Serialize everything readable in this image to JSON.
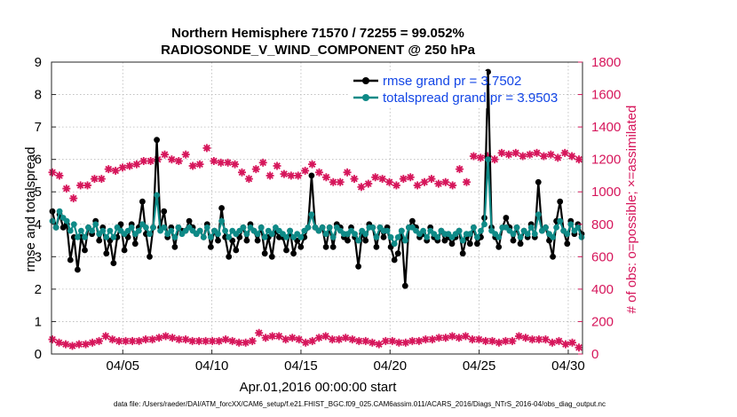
{
  "chart_data": {
    "type": "line",
    "title": "Northern Hemisphere 71570 / 72255 = 99.052%",
    "subtitle": "RADIOSONDE_V_WIND_COMPONENT @ 250 hPa",
    "xlabel": "Apr.01,2016 00:00:00 start",
    "ylabel": "rmse and totalspread",
    "ylabel_right": "# of obs: o=possible; ×=assimilated",
    "footer": "data file: /Users/raeder/DAI/ATM_forcXX/CAM6_setup/f.e21.FHIST_BGC.f09_025.CAM6assim.011/ACARS_2016/Diags_NTrS_2016-04/obs_diag_output.nc",
    "x_ticks": [
      "04/05",
      "04/10",
      "04/15",
      "04/20",
      "04/25",
      "04/30"
    ],
    "x_tick_days": [
      4,
      9,
      14,
      19,
      24,
      29
    ],
    "xlim_days": [
      0,
      29.8
    ],
    "ylim": [
      0,
      9
    ],
    "y_ticks": [
      "0",
      "1",
      "2",
      "3",
      "4",
      "5",
      "6",
      "7",
      "8",
      "9"
    ],
    "ylim_right": [
      0,
      1800
    ],
    "y_ticks_right": [
      "0",
      "200",
      "400",
      "600",
      "800",
      "1000",
      "1200",
      "1400",
      "1600",
      "1800"
    ],
    "grid": true,
    "legend_position": "top-right",
    "colors": {
      "rmse": "#000000",
      "spread": "#0e8a87",
      "obs": "#d6165b",
      "legend_text": "#1346e6"
    },
    "series": [
      {
        "name": "rmse grand pr = 3.7502",
        "axis": "left",
        "values": [
          4.4,
          3.9,
          4.3,
          3.9,
          4.0,
          2.9,
          3.6,
          2.6,
          3.6,
          3.2,
          3.9,
          3.7,
          4.1,
          3.5,
          3.9,
          3.1,
          3.5,
          2.8,
          3.6,
          4.0,
          3.2,
          3.6,
          4.0,
          3.4,
          3.9,
          4.7,
          3.7,
          3.0,
          3.9,
          6.6,
          3.9,
          4.4,
          3.6,
          3.9,
          3.3,
          3.9,
          3.8,
          3.8,
          4.1,
          3.9,
          3.7,
          3.8,
          3.6,
          4.0,
          3.3,
          3.8,
          3.5,
          4.5,
          3.6,
          3.0,
          3.5,
          3.2,
          3.6,
          3.9,
          3.5,
          4.0,
          3.8,
          3.5,
          3.9,
          3.1,
          3.6,
          3.0,
          3.8,
          3.6,
          3.6,
          3.2,
          3.8,
          3.1,
          3.5,
          3.3,
          3.6,
          3.9,
          5.5,
          3.9,
          3.8,
          3.9,
          3.3,
          3.9,
          3.3,
          4.0,
          3.9,
          3.6,
          3.5,
          3.9,
          3.6,
          2.7,
          3.7,
          3.5,
          4.0,
          3.9,
          3.3,
          3.9,
          3.6,
          3.9,
          3.3,
          2.9,
          3.1,
          3.8,
          2.1,
          3.9,
          4.1,
          3.9,
          3.6,
          3.7,
          3.5,
          3.9,
          3.6,
          3.5,
          3.8,
          3.5,
          3.6,
          3.4,
          3.6,
          3.8,
          3.1,
          3.6,
          3.4,
          3.9,
          3.4,
          3.6,
          4.2,
          8.7,
          3.9,
          3.6,
          3.3,
          3.9,
          4.2,
          3.9,
          3.5,
          3.9,
          3.4,
          3.8,
          3.6,
          4.0,
          3.6,
          5.3,
          3.8,
          3.9,
          3.5,
          3.0,
          4.1,
          4.7,
          3.8,
          3.4,
          4.1,
          3.7,
          4.0,
          3.7
        ]
      },
      {
        "name": "totalspread grand pr = 3.9503",
        "axis": "left",
        "values": [
          4.1,
          3.9,
          4.4,
          4.2,
          4.1,
          3.8,
          4.0,
          3.6,
          3.8,
          3.6,
          3.9,
          3.8,
          4.0,
          3.7,
          3.8,
          3.6,
          3.8,
          3.6,
          3.9,
          3.8,
          3.7,
          3.8,
          3.9,
          3.7,
          3.8,
          4.0,
          3.9,
          3.7,
          3.9,
          4.9,
          3.8,
          3.9,
          3.7,
          3.8,
          3.6,
          3.9,
          3.7,
          3.8,
          3.9,
          3.8,
          3.7,
          3.8,
          3.6,
          3.9,
          3.6,
          3.8,
          3.7,
          4.1,
          3.8,
          3.6,
          3.8,
          3.7,
          3.8,
          3.9,
          3.7,
          3.9,
          3.8,
          3.7,
          3.9,
          3.6,
          3.8,
          3.7,
          3.9,
          3.8,
          3.7,
          3.6,
          3.8,
          3.6,
          3.7,
          3.6,
          3.8,
          3.9,
          4.3,
          3.9,
          3.8,
          3.9,
          3.7,
          3.9,
          3.6,
          3.9,
          3.8,
          3.7,
          3.7,
          3.8,
          3.7,
          3.5,
          3.8,
          3.7,
          3.9,
          3.9,
          3.6,
          3.9,
          3.8,
          3.8,
          3.6,
          3.4,
          3.6,
          3.8,
          3.5,
          3.9,
          3.9,
          3.8,
          3.7,
          3.8,
          3.6,
          3.8,
          3.7,
          3.6,
          3.8,
          3.7,
          3.7,
          3.6,
          3.7,
          3.8,
          3.5,
          3.7,
          3.7,
          3.9,
          3.6,
          3.8,
          4.0,
          6.0,
          3.8,
          3.7,
          3.6,
          3.9,
          3.9,
          3.8,
          3.7,
          3.9,
          3.6,
          3.8,
          3.7,
          3.9,
          3.7,
          4.3,
          3.8,
          3.9,
          3.7,
          3.6,
          3.9,
          4.1,
          3.8,
          3.7,
          4.0,
          3.8,
          3.9,
          3.6
        ]
      },
      {
        "name": "possible",
        "axis": "right",
        "values": [
          1120,
          1100,
          1020,
          960,
          1040,
          1040,
          1080,
          1080,
          1140,
          1130,
          1150,
          1160,
          1170,
          1190,
          1190,
          1200,
          1230,
          1200,
          1190,
          1230,
          1160,
          1170,
          1270,
          1190,
          1180,
          1180,
          1170,
          1120,
          1080,
          1140,
          1180,
          1100,
          1160,
          1110,
          1100,
          1100,
          1130,
          1170,
          1120,
          1090,
          1060,
          1060,
          1120,
          1080,
          1030,
          1050,
          1090,
          1080,
          1060,
          1040,
          1080,
          1090,
          1040,
          1060,
          1080,
          1050,
          1060,
          1040,
          1140,
          1060,
          1220,
          1210,
          1220,
          1200,
          1240,
          1230,
          1240,
          1220,
          1230,
          1240,
          1220,
          1230,
          1210,
          1240,
          1220,
          1200
        ]
      },
      {
        "name": "assimilated",
        "axis": "right",
        "values": [
          90,
          70,
          60,
          50,
          60,
          60,
          70,
          80,
          110,
          90,
          80,
          80,
          80,
          80,
          90,
          90,
          100,
          110,
          100,
          90,
          90,
          80,
          80,
          80,
          80,
          80,
          90,
          80,
          70,
          70,
          80,
          130,
          100,
          110,
          110,
          90,
          100,
          90,
          70,
          80,
          100,
          110,
          90,
          90,
          100,
          90,
          80,
          80,
          70,
          60,
          80,
          80,
          70,
          70,
          80,
          80,
          90,
          90,
          100,
          100,
          110,
          100,
          110,
          90,
          90,
          80,
          80,
          70,
          80,
          80,
          110,
          100,
          90,
          90,
          90,
          70,
          80,
          60,
          70,
          40
        ]
      }
    ]
  }
}
